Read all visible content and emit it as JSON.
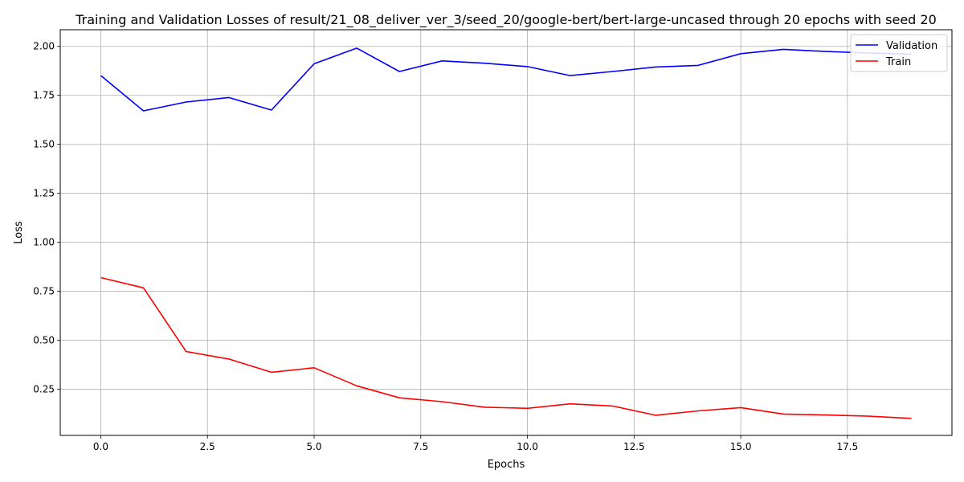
{
  "chart_data": {
    "type": "line",
    "title": "Training and Validation Losses of result/21_08_deliver_ver_3/seed_20/google-bert/bert-large-uncased through 20 epochs with seed 20",
    "xlabel": "Epochs",
    "ylabel": "Loss",
    "xlim": [
      -0.95,
      19.95
    ],
    "ylim": [
      0.015,
      2.085
    ],
    "x_ticks": [
      0.0,
      2.5,
      5.0,
      7.5,
      10.0,
      12.5,
      15.0,
      17.5
    ],
    "x_tick_labels": [
      "0.0",
      "2.5",
      "5.0",
      "7.5",
      "10.0",
      "12.5",
      "15.0",
      "17.5"
    ],
    "y_ticks": [
      0.25,
      0.5,
      0.75,
      1.0,
      1.25,
      1.5,
      1.75,
      2.0
    ],
    "y_tick_labels": [
      "0.25",
      "0.50",
      "0.75",
      "1.00",
      "1.25",
      "1.50",
      "1.75",
      "2.00"
    ],
    "grid": true,
    "legend_position": "top-right",
    "x": [
      0,
      1,
      2,
      3,
      4,
      5,
      6,
      7,
      8,
      9,
      10,
      11,
      12,
      13,
      14,
      15,
      16,
      17,
      18,
      19
    ],
    "series": [
      {
        "name": "Validation",
        "color": "#0000ff",
        "values": [
          1.851,
          1.671,
          1.716,
          1.739,
          1.675,
          1.911,
          1.991,
          1.872,
          1.926,
          1.914,
          1.897,
          1.851,
          1.872,
          1.895,
          1.903,
          1.963,
          1.985,
          1.974,
          1.966,
          1.961
        ]
      },
      {
        "name": "Train",
        "color": "#ff0000",
        "values": [
          0.82,
          0.768,
          0.443,
          0.405,
          0.337,
          0.36,
          0.268,
          0.207,
          0.187,
          0.159,
          0.153,
          0.176,
          0.165,
          0.118,
          0.14,
          0.157,
          0.124,
          0.119,
          0.113,
          0.102
        ]
      }
    ]
  }
}
